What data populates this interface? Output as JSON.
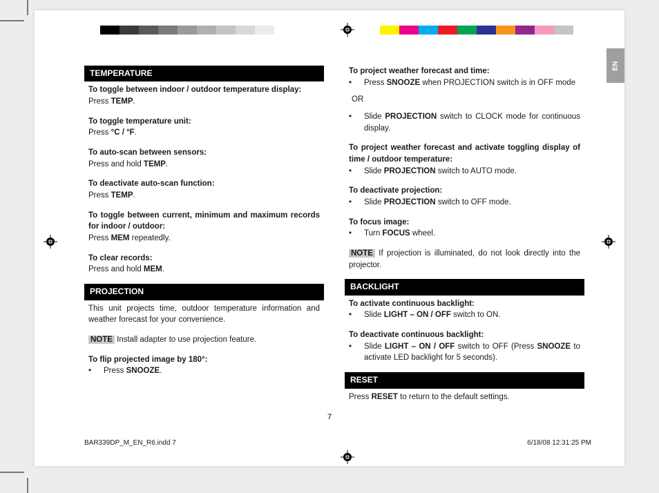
{
  "lang_tab": "EN",
  "color_swatches_left": [
    "#000000",
    "#3a3a3a",
    "#5a5a5a",
    "#7a7a7a",
    "#9a9a9a",
    "#b0b0b0",
    "#c4c4c4",
    "#d8d8d8",
    "#ececec",
    "#ffffff"
  ],
  "color_swatches_right": [
    "#fff200",
    "#ec008c",
    "#00aeef",
    "#ed1c24",
    "#00a651",
    "#2e3192",
    "#f7941d",
    "#92278f",
    "#f49ac1",
    "#c4c4c4"
  ],
  "left_column": {
    "temperature": {
      "header": "TEMPERATURE",
      "items": [
        {
          "title": "To toggle between indoor / outdoor temperature display:",
          "body_pre": "Press ",
          "body_bold": "TEMP",
          "body_post": "."
        },
        {
          "title": "To toggle temperature unit:",
          "body_pre": "Press ",
          "body_bold": "°C / °F",
          "body_post": "."
        },
        {
          "title": "To auto-scan between sensors:",
          "body_pre": "Press and hold ",
          "body_bold": "TEMP",
          "body_post": "."
        },
        {
          "title": "To deactivate auto-scan function:",
          "body_pre": "Press ",
          "body_bold": "TEMP",
          "body_post": "."
        },
        {
          "title": "To toggle between current, minimum and maximum records for indoor / outdoor:",
          "body_pre": "Press ",
          "body_bold": "MEM",
          "body_post": " repeatedly."
        },
        {
          "title": "To clear records:",
          "body_pre": "Press and hold ",
          "body_bold": "MEM",
          "body_post": "."
        }
      ]
    },
    "projection": {
      "header": "PROJECTION",
      "intro": "This unit projects time, outdoor temperature information and weather forecast for your convenience.",
      "note_label": "NOTE",
      "note_text": " Install adapter to use projection feature.",
      "flip_title": "To flip projected image by 180°:",
      "flip_bullet_pre": "Press ",
      "flip_bullet_bold": "SNOOZE",
      "flip_bullet_post": "."
    }
  },
  "right_column": {
    "projection_cont": {
      "p1_title": "To project weather forecast and time:",
      "p1_bullet_pre": "Press ",
      "p1_bullet_bold": "SNOOZE",
      "p1_bullet_post": " when PROJECTION switch is in OFF mode",
      "or": "OR",
      "p2_bullet_pre": "Slide ",
      "p2_bullet_bold": "PROJECTION",
      "p2_bullet_post": " switch to CLOCK mode for continuous display.",
      "p3_title": "To project weather forecast and activate toggling display of time / outdoor temperature:",
      "p3_bullet_pre": "Slide ",
      "p3_bullet_bold": "PROJECTION",
      "p3_bullet_post": " switch to AUTO mode.",
      "p4_title": "To deactivate projection:",
      "p4_bullet_pre": "Slide ",
      "p4_bullet_bold": "PROJECTION",
      "p4_bullet_post": " switch to OFF mode.",
      "p5_title": "To focus image:",
      "p5_bullet_pre": "Turn ",
      "p5_bullet_bold": "FOCUS",
      "p5_bullet_post": " wheel.",
      "note_label": "NOTE",
      "note_text": " If projection is illuminated, do not look directly into the projector."
    },
    "backlight": {
      "header": "BACKLIGHT",
      "a_title": "To activate continuous backlight:",
      "a_bullet_pre": "Slide ",
      "a_bullet_bold": "LIGHT – ON / OFF",
      "a_bullet_post": " switch to ON.",
      "d_title": "To deactivate continuous backlight:",
      "d_bullet_pre": "Slide ",
      "d_bullet_bold": "LIGHT – ON / OFF",
      "d_bullet_mid": " switch to OFF (Press ",
      "d_bullet_bold2": "SNOOZE",
      "d_bullet_post": " to activate LED backlight for 5 seconds)."
    },
    "reset": {
      "header": "RESET",
      "text_pre": "Press ",
      "text_bold": "RESET",
      "text_post": " to return to the default settings."
    }
  },
  "page_number": "7",
  "footer_left": "BAR339DP_M_EN_R6.indd   7",
  "footer_right": "6/18/08   12:31:25 PM"
}
